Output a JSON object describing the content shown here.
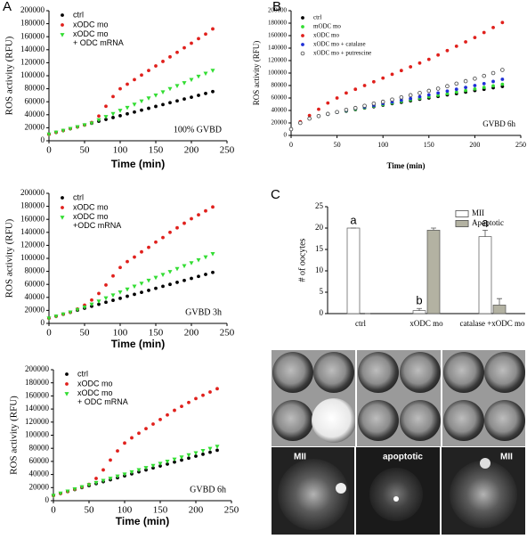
{
  "panel_labels": [
    "A",
    "B",
    "C"
  ],
  "micrographs": {
    "labels": [
      "MII",
      "apoptotic",
      "MII"
    ]
  },
  "chart_data": [
    {
      "type": "scatter",
      "ylabel": "ROS activity (RFU)",
      "xlabel": "Time (min)",
      "annotation": "100% GVBD",
      "xlim": [
        0,
        250
      ],
      "xticks": [
        0,
        50,
        100,
        150,
        200,
        250
      ],
      "ylim": [
        0,
        200000
      ],
      "yticks": [
        0,
        20000,
        40000,
        60000,
        80000,
        100000,
        120000,
        140000,
        160000,
        180000,
        200000
      ],
      "x": [
        0,
        10,
        20,
        30,
        40,
        50,
        60,
        70,
        80,
        90,
        100,
        110,
        120,
        130,
        140,
        150,
        160,
        170,
        180,
        190,
        200,
        210,
        220,
        230
      ],
      "series": [
        {
          "name": "ctrl",
          "color": "#000000",
          "marker": "circle",
          "values": [
            10000,
            12900,
            15700,
            18600,
            21400,
            24300,
            27100,
            30000,
            32800,
            35700,
            38500,
            41400,
            44200,
            47100,
            49900,
            52800,
            55600,
            58500,
            61300,
            64200,
            67000,
            69900,
            72700,
            75600
          ]
        },
        {
          "name": "xODC mo",
          "color": "#e0201c",
          "marker": "circle",
          "values": [
            10000,
            12900,
            15700,
            18600,
            21400,
            24300,
            28000,
            38000,
            53000,
            68000,
            80000,
            87000,
            94000,
            101000,
            108000,
            115000,
            122000,
            129000,
            136000,
            143000,
            150000,
            157000,
            164000,
            172000
          ]
        },
        {
          "name": "xODC mo\n+ ODC mRNA",
          "color": "#33dd33",
          "marker": "triangle",
          "values": [
            10000,
            12900,
            15700,
            18600,
            21400,
            24300,
            27100,
            32000,
            37000,
            41500,
            46500,
            51000,
            56000,
            61000,
            65500,
            70000,
            75000,
            80000,
            84500,
            89000,
            94000,
            99000,
            103500,
            108000
          ]
        }
      ]
    },
    {
      "type": "scatter",
      "ylabel": "ROS activity (RFU)",
      "xlabel": "Time (min)",
      "annotation": "GVBD 3h",
      "xlim": [
        0,
        250
      ],
      "xticks": [
        0,
        50,
        100,
        150,
        200,
        250
      ],
      "ylim": [
        0,
        200000
      ],
      "yticks": [
        0,
        20000,
        40000,
        60000,
        80000,
        100000,
        120000,
        140000,
        160000,
        180000,
        200000
      ],
      "x": [
        0,
        10,
        20,
        30,
        40,
        50,
        60,
        70,
        80,
        90,
        100,
        110,
        120,
        130,
        140,
        150,
        160,
        170,
        180,
        190,
        200,
        210,
        220,
        230
      ],
      "series": [
        {
          "name": "ctrl",
          "color": "#000000",
          "marker": "circle",
          "values": [
            8000,
            11000,
            14100,
            17200,
            20200,
            23300,
            26400,
            29400,
            32500,
            35500,
            38600,
            41700,
            44700,
            47800,
            50800,
            53900,
            57000,
            60000,
            63100,
            66100,
            69200,
            72300,
            75300,
            78400
          ]
        },
        {
          "name": "xODC mo",
          "color": "#e0201c",
          "marker": "circle",
          "values": [
            8000,
            11000,
            14100,
            17200,
            22000,
            28000,
            36000,
            46000,
            59000,
            73000,
            86000,
            95000,
            102000,
            110000,
            117000,
            125000,
            132000,
            140000,
            147000,
            154000,
            161000,
            167000,
            173000,
            179000
          ]
        },
        {
          "name": "xODC mo\n+ODC mRNA",
          "color": "#33dd33",
          "marker": "triangle",
          "values": [
            8000,
            11000,
            14100,
            17200,
            21000,
            25000,
            29500,
            34000,
            39000,
            43500,
            48000,
            52500,
            57000,
            61500,
            66000,
            70500,
            75000,
            79500,
            84000,
            88500,
            93000,
            97500,
            102000,
            107000
          ]
        }
      ]
    },
    {
      "type": "scatter",
      "ylabel": "ROS activity (RFU)",
      "xlabel": "Time (min)",
      "annotation": "GVBD 6h",
      "xlim": [
        0,
        250
      ],
      "xticks": [
        0,
        50,
        100,
        150,
        200,
        250
      ],
      "ylim": [
        0,
        200000
      ],
      "yticks": [
        0,
        20000,
        40000,
        60000,
        80000,
        100000,
        120000,
        140000,
        160000,
        180000,
        200000
      ],
      "x": [
        0,
        10,
        20,
        30,
        40,
        50,
        60,
        70,
        80,
        90,
        100,
        110,
        120,
        130,
        140,
        150,
        160,
        170,
        180,
        190,
        200,
        210,
        220,
        230
      ],
      "series": [
        {
          "name": "ctrl",
          "color": "#000000",
          "marker": "circle",
          "values": [
            8000,
            11000,
            14000,
            17000,
            20000,
            23000,
            26000,
            29000,
            32000,
            35000,
            38000,
            41000,
            44000,
            47000,
            50000,
            53000,
            56000,
            59000,
            62000,
            65000,
            68000,
            71000,
            74000,
            77000
          ]
        },
        {
          "name": "xODC mo",
          "color": "#e0201c",
          "marker": "circle",
          "values": [
            8000,
            11000,
            14000,
            17500,
            21000,
            25000,
            34000,
            47000,
            62000,
            76000,
            88000,
            96000,
            103000,
            110000,
            117000,
            124000,
            131000,
            138000,
            144000,
            150000,
            156000,
            161000,
            166000,
            171000
          ]
        },
        {
          "name": "xODC mo\n+ ODC mRNA",
          "color": "#33dd33",
          "marker": "triangle",
          "values": [
            8000,
            11300,
            14500,
            17800,
            21000,
            24300,
            27500,
            30800,
            34000,
            37300,
            40500,
            43800,
            47000,
            50300,
            53500,
            56800,
            60000,
            63300,
            66500,
            69800,
            73000,
            76300,
            79500,
            82800
          ]
        }
      ]
    },
    {
      "type": "scatter",
      "ylabel": "ROS activity (RFU)",
      "xlabel": "Time (min)",
      "annotation": "GVBD 6h",
      "xlim": [
        0,
        250
      ],
      "xticks": [
        0,
        50,
        100,
        150,
        200,
        250
      ],
      "ylim": [
        0,
        200000
      ],
      "yticks": [
        0,
        20000,
        40000,
        60000,
        80000,
        100000,
        120000,
        140000,
        160000,
        180000,
        200000
      ],
      "x": [
        0,
        10,
        20,
        30,
        40,
        50,
        60,
        70,
        80,
        90,
        100,
        110,
        120,
        130,
        140,
        150,
        160,
        170,
        180,
        190,
        200,
        210,
        220,
        230
      ],
      "series": [
        {
          "name": "ctrl",
          "color": "#000000",
          "marker": "circle",
          "values": [
            10000,
            20000,
            27000,
            31000,
            34000,
            37000,
            39000,
            41500,
            44000,
            46000,
            48500,
            51000,
            53000,
            55500,
            58000,
            60000,
            62500,
            65000,
            67000,
            69500,
            72000,
            74000,
            76500,
            78500
          ]
        },
        {
          "name": "mODC mo",
          "color": "#33dd33",
          "marker": "circle",
          "values": [
            10000,
            20000,
            27000,
            31000,
            34000,
            37000,
            39500,
            42000,
            44500,
            47000,
            49500,
            52000,
            54500,
            57000,
            59500,
            62000,
            64500,
            67000,
            69500,
            72000,
            74500,
            77000,
            79500,
            82000
          ]
        },
        {
          "name": "xODC mo",
          "color": "#e0201c",
          "marker": "circle",
          "values": [
            10000,
            22000,
            32000,
            42000,
            52000,
            60000,
            68000,
            74000,
            80000,
            86000,
            92000,
            98000,
            104000,
            110000,
            116000,
            122000,
            129000,
            136000,
            143000,
            150000,
            157000,
            165000,
            173000,
            181000
          ]
        },
        {
          "name": "xODC mo + catalase",
          "color": "#1f2fd6",
          "marker": "circle",
          "values": [
            10000,
            20000,
            27000,
            31000,
            34000,
            37000,
            40000,
            43000,
            45500,
            48000,
            51000,
            53500,
            56500,
            59000,
            62000,
            65000,
            68000,
            71000,
            74000,
            77000,
            80000,
            83000,
            86500,
            90000
          ]
        },
        {
          "name": "xODC mo + putrescine",
          "color": "#444444",
          "marker": "open",
          "values": [
            10000,
            20000,
            27000,
            31000,
            34500,
            37500,
            41000,
            44000,
            47500,
            51000,
            54000,
            57500,
            61000,
            64500,
            68000,
            71500,
            75000,
            79000,
            83000,
            87000,
            91000,
            95500,
            100000,
            105000
          ]
        }
      ]
    },
    {
      "type": "bar",
      "ylabel": "# of oocytes",
      "categories": [
        "ctrl",
        "xODC mo",
        "catalase +xODC mo"
      ],
      "ylim": [
        0,
        25
      ],
      "yticks": [
        0,
        5,
        10,
        15,
        20,
        25
      ],
      "bar_annotations": [
        "a",
        "b",
        "a"
      ],
      "series": [
        {
          "name": "MII",
          "color": "#ffffff",
          "values": [
            20,
            0.7,
            18
          ],
          "errors": [
            0,
            0.5,
            1.5
          ]
        },
        {
          "name": "Apoptotic",
          "color": "#b3b2a2",
          "values": [
            0,
            19.5,
            2
          ],
          "errors": [
            0,
            0.5,
            1.5
          ]
        }
      ]
    }
  ]
}
